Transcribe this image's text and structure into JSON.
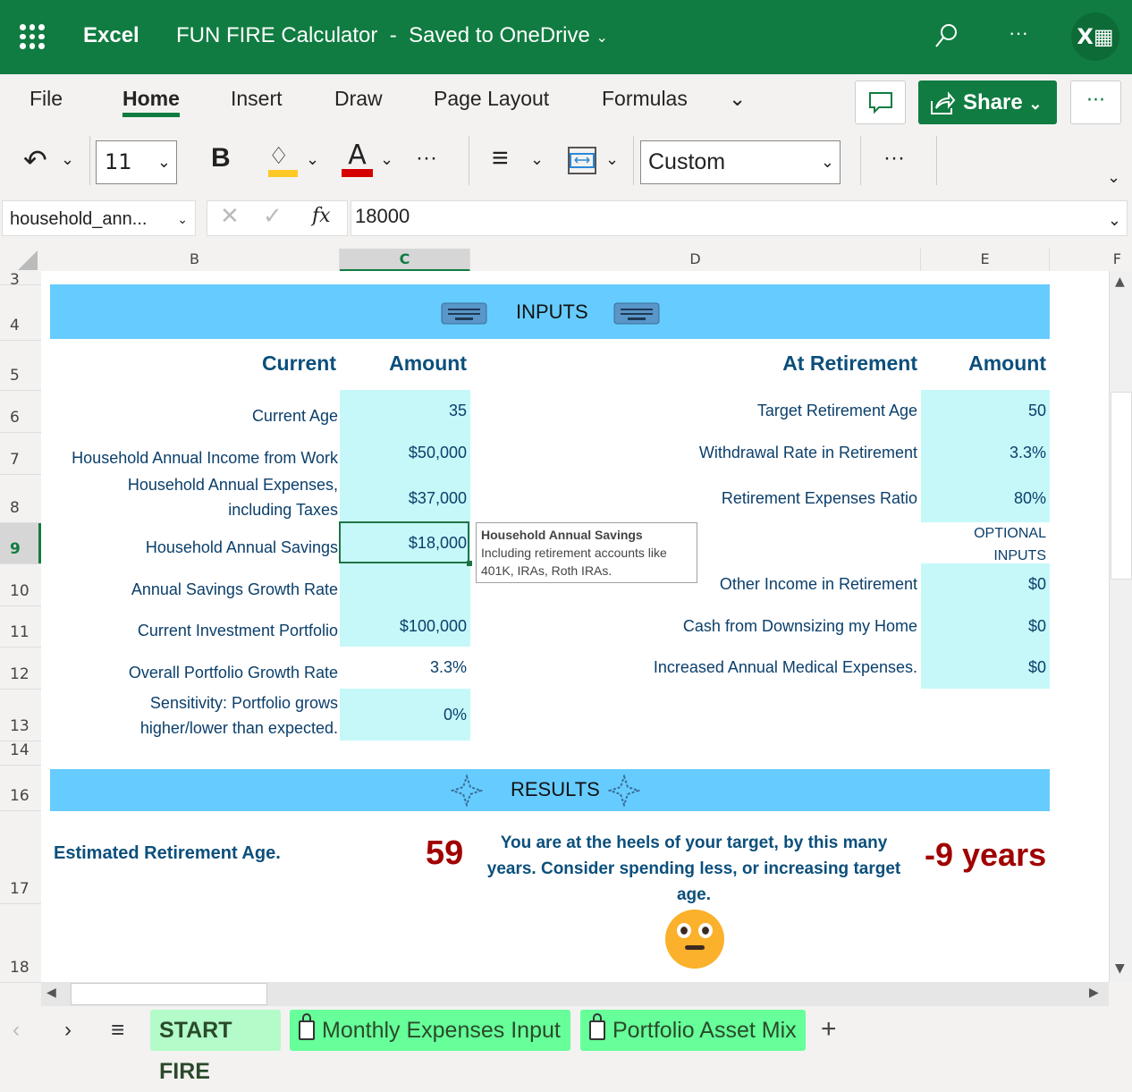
{
  "app": {
    "name": "Excel",
    "doc_title": "FUN FIRE Calculator",
    "separator": "-",
    "save_status": "Saved to OneDrive",
    "brand_color": "#107c41"
  },
  "ribbon": {
    "tabs": [
      "File",
      "Home",
      "Insert",
      "Draw",
      "Page Layout",
      "Formulas"
    ],
    "active_tab": "Home",
    "share_label": "Share",
    "font_size": "11",
    "number_format": "Custom"
  },
  "formula_bar": {
    "name_box": "household_ann...",
    "formula": "18000"
  },
  "columns": [
    "B",
    "C",
    "D",
    "E",
    "F"
  ],
  "selected_column": "C",
  "rows": [
    {
      "n": "3",
      "top": 303,
      "h": 15
    },
    {
      "n": "4",
      "top": 318,
      "h": 62
    },
    {
      "n": "5",
      "top": 380,
      "h": 56
    },
    {
      "n": "6",
      "top": 436,
      "h": 47
    },
    {
      "n": "7",
      "top": 483,
      "h": 47
    },
    {
      "n": "8",
      "top": 530,
      "h": 54
    },
    {
      "n": "9",
      "top": 584,
      "h": 46
    },
    {
      "n": "10",
      "top": 630,
      "h": 47
    },
    {
      "n": "11",
      "top": 677,
      "h": 46
    },
    {
      "n": "12",
      "top": 723,
      "h": 47
    },
    {
      "n": "13",
      "top": 770,
      "h": 58
    },
    {
      "n": "14",
      "top": 828,
      "h": 27
    },
    {
      "n": "16",
      "top": 855,
      "h": 51
    },
    {
      "n": "17",
      "top": 906,
      "h": 104
    },
    {
      "n": "18",
      "top": 1010,
      "h": 88
    }
  ],
  "selected_row": "9",
  "inputs": {
    "banner": "INPUTS",
    "left_header": "Current",
    "left_amount_header": "Amount",
    "right_header": "At Retirement",
    "right_amount_header": "Amount",
    "left": [
      {
        "label": "Current Age",
        "value": "35"
      },
      {
        "label": "Household Annual Income from Work",
        "value": "$50,000"
      },
      {
        "label": "Household Annual Expenses,\nincluding Taxes",
        "value": "$37,000"
      },
      {
        "label": "Household Annual Savings",
        "value": "$18,000"
      },
      {
        "label": "Annual Savings Growth Rate",
        "value": ""
      },
      {
        "label": "Current Investment Portfolio",
        "value": "$100,000"
      },
      {
        "label": "Overall Portfolio Growth Rate",
        "value": "3.3%"
      },
      {
        "label": "Sensitivity: Portfolio grows\nhigher/lower than expected.",
        "value": "0%"
      }
    ],
    "right": [
      {
        "label": "Target Retirement Age",
        "value": "50"
      },
      {
        "label": "Withdrawal Rate in Retirement",
        "value": "3.3%"
      },
      {
        "label": "Retirement Expenses Ratio",
        "value": "80%"
      },
      {
        "label": "",
        "value": ""
      },
      {
        "label": "Other Income in Retirement",
        "value": "$0"
      },
      {
        "label": "Cash from Downsizing my Home",
        "value": "$0"
      },
      {
        "label": "Increased Annual Medical Expenses.",
        "value": "$0"
      }
    ],
    "optional_label": "OPTIONAL\nINPUTS"
  },
  "tooltip": {
    "title": "Household Annual Savings",
    "body": "Including retirement accounts like 401K, IRAs,\nRoth IRAs."
  },
  "results": {
    "banner": "RESULTS",
    "label": "Estimated Retirement Age.",
    "age": "59",
    "message": "You are at the heels of your target, by this many\nyears. Consider spending less, or increasing target age.",
    "gap": "-9 years",
    "emoji": "neutral-face"
  },
  "sheets": [
    {
      "name": "START FIRE",
      "locked": false,
      "active": true
    },
    {
      "name": "Monthly Expenses Input",
      "locked": true,
      "active": false
    },
    {
      "name": "Portfolio Asset Mix",
      "locked": true,
      "active": false
    }
  ],
  "colors": {
    "input_cell": "#c6f8f9",
    "banner": "#66ccff",
    "result_red": "#a00000",
    "label_blue": "#0b3f6b"
  }
}
